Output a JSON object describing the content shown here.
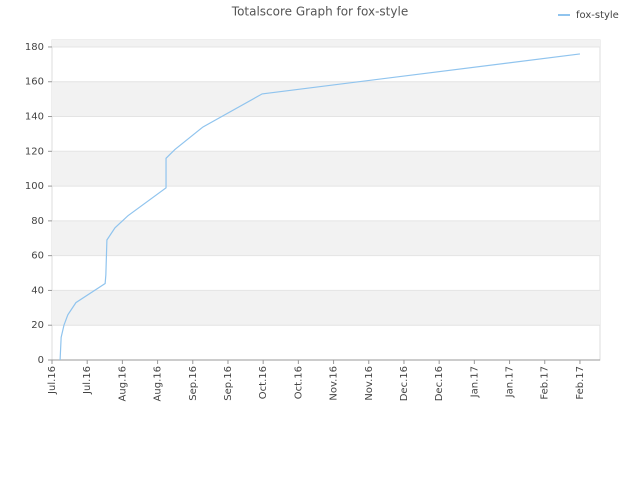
{
  "chart_data": {
    "type": "line",
    "title": "Totalscore Graph for fox-style",
    "x": [
      0.23,
      0.26,
      0.34,
      0.45,
      0.68,
      1.51,
      1.53,
      1.56,
      1.79,
      2.16,
      3.24,
      3.24,
      3.49,
      4.29,
      5.97,
      15
    ],
    "series": [
      {
        "name": "fox-style",
        "color": "#90c4ee",
        "values": [
          0,
          13,
          20,
          26,
          33,
          44,
          49,
          69,
          76,
          83,
          99,
          116,
          121,
          134,
          153,
          176
        ]
      }
    ],
    "xlim": [
      0,
      15.57
    ],
    "xticks": [
      {
        "value": 0,
        "label": "Jul.16"
      },
      {
        "value": 1,
        "label": "Jul.16"
      },
      {
        "value": 2,
        "label": "Aug.16"
      },
      {
        "value": 3,
        "label": "Aug.16"
      },
      {
        "value": 4,
        "label": "Sep.16"
      },
      {
        "value": 5,
        "label": "Sep.16"
      },
      {
        "value": 6,
        "label": "Oct.16"
      },
      {
        "value": 7,
        "label": "Oct.16"
      },
      {
        "value": 8,
        "label": "Nov.16"
      },
      {
        "value": 9,
        "label": "Nov.16"
      },
      {
        "value": 10,
        "label": "Dec.16"
      },
      {
        "value": 11,
        "label": "Dec.16"
      },
      {
        "value": 12,
        "label": "Jan.17"
      },
      {
        "value": 13,
        "label": "Jan.17"
      },
      {
        "value": 14,
        "label": "Feb.17"
      },
      {
        "value": 15,
        "label": "Feb.17"
      }
    ],
    "ylim": [
      0,
      184
    ],
    "yticks": [
      0,
      20,
      40,
      60,
      80,
      100,
      120,
      140,
      160,
      180
    ],
    "grid": true,
    "legend": "top-right"
  }
}
